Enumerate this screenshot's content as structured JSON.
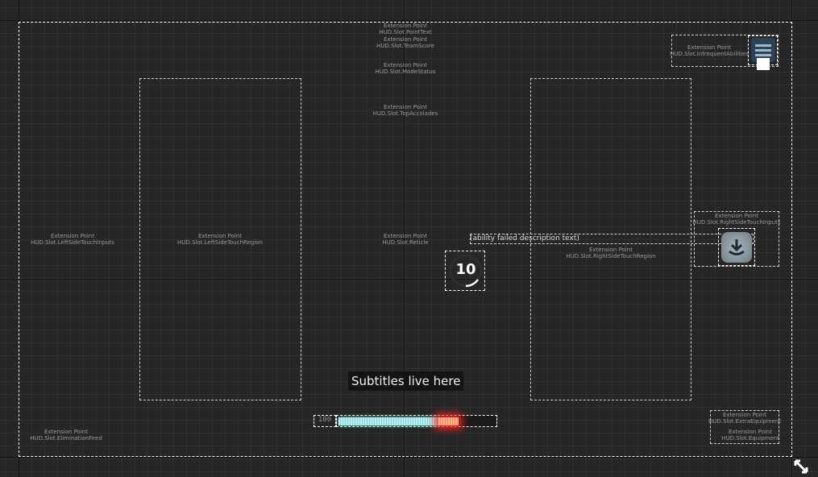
{
  "slots": [
    {
      "id": "team-score",
      "title": "Extension Point",
      "name": "HUD.Slot.TeamScore"
    },
    {
      "id": "point-text",
      "title": "Extension Point",
      "name": "HUD.Slot.PointText"
    },
    {
      "id": "mode-status",
      "title": "Extension Point",
      "name": "HUD.Slot.ModeStatus"
    },
    {
      "id": "top-accolades",
      "title": "Extension Point",
      "name": "HUD.Slot.TopAccolades"
    },
    {
      "id": "infrequent-abilities",
      "title": "Extension Point",
      "name": "HUD.Slot.InfrequentAbilities"
    },
    {
      "id": "left-side-touch-inputs",
      "title": "Extension Point",
      "name": "HUD.Slot.LeftSideTouchInputs"
    },
    {
      "id": "left-side-touch-region",
      "title": "Extension Point",
      "name": "HUD.Slot.LeftSideTouchRegion"
    },
    {
      "id": "reticle",
      "title": "Extension Point",
      "name": "HUD.Slot.Reticle"
    },
    {
      "id": "right-side-touch-region",
      "title": "Extension Point",
      "name": "HUD.Slot.RightSideTouchRegion"
    },
    {
      "id": "right-side-touch-inputs",
      "title": "Extension Point",
      "name": "HUD.Slot.RightSideTouchInputs"
    },
    {
      "id": "elimination-feed",
      "title": "Extension Point",
      "name": "HUD.Slot.EliminationFeed"
    },
    {
      "id": "extra-equipment",
      "title": "Extension Point",
      "name": "HUD.Slot.ExtraEquipment"
    },
    {
      "id": "equipment",
      "title": "Extension Point",
      "name": "HUD.Slot.Equipment"
    }
  ],
  "ability_failed_text": "(ability failed description text)",
  "reticle_ammo": "10",
  "subtitles": "Subtitles live here",
  "health": {
    "value": "100",
    "fill_percent": 77,
    "damage_percent": 13,
    "bar_color": "#a9e4ea",
    "damage_color": "#ff5a4a"
  },
  "icons": {
    "menu": "hamburger-menu-icon",
    "download": "download-icon",
    "resize": "resize-diagonal-icon"
  }
}
